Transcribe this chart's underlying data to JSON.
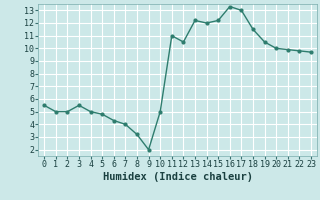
{
  "x": [
    0,
    1,
    2,
    3,
    4,
    5,
    6,
    7,
    8,
    9,
    10,
    11,
    12,
    13,
    14,
    15,
    16,
    17,
    18,
    19,
    20,
    21,
    22,
    23
  ],
  "y": [
    5.5,
    5.0,
    5.0,
    5.5,
    5.0,
    4.8,
    4.3,
    4.0,
    3.2,
    2.0,
    5.0,
    11.0,
    10.5,
    12.2,
    12.0,
    12.2,
    13.3,
    13.0,
    11.5,
    10.5,
    10.0,
    9.9,
    9.8,
    9.7
  ],
  "line_color": "#2e7d6e",
  "marker": "o",
  "marker_size": 2,
  "bg_color": "#cce8e8",
  "grid_color": "#ffffff",
  "xlabel": "Humidex (Indice chaleur)",
  "ylabel": "",
  "xlim": [
    -0.5,
    23.5
  ],
  "ylim": [
    1.5,
    13.5
  ],
  "yticks": [
    2,
    3,
    4,
    5,
    6,
    7,
    8,
    9,
    10,
    11,
    12,
    13
  ],
  "xticks": [
    0,
    1,
    2,
    3,
    4,
    5,
    6,
    7,
    8,
    9,
    10,
    11,
    12,
    13,
    14,
    15,
    16,
    17,
    18,
    19,
    20,
    21,
    22,
    23
  ],
  "tick_label_fontsize": 6,
  "xlabel_fontsize": 7.5,
  "line_width": 1.0
}
